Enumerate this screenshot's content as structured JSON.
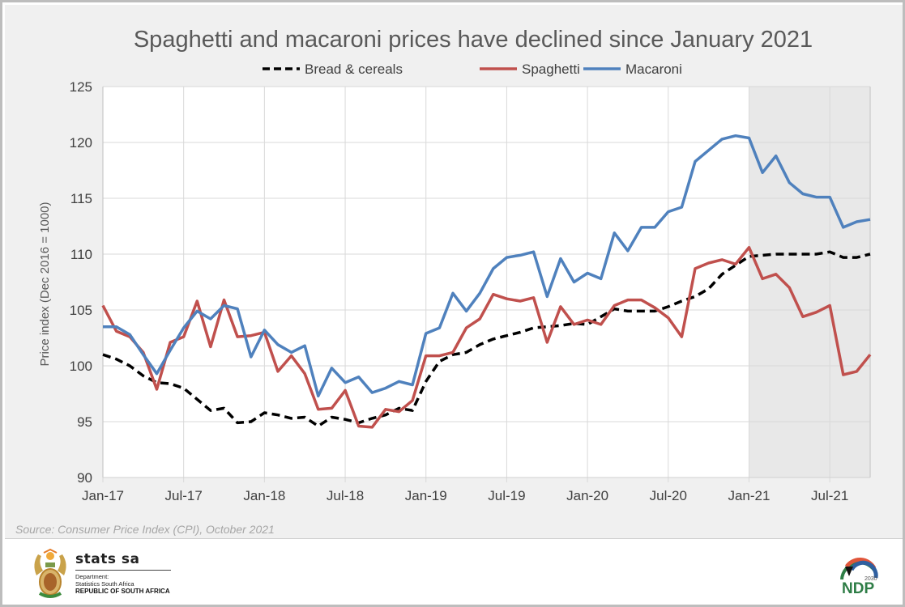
{
  "chart_data": {
    "type": "line",
    "title": "Spaghetti and macaroni prices have declined since January 2021",
    "xlabel": "",
    "ylabel": "Price index (Dec 2016 = 1000)",
    "ylim": [
      90,
      125
    ],
    "yticks": [
      "90",
      "95",
      "100",
      "105",
      "110",
      "115",
      "120",
      "125"
    ],
    "ytick_values": [
      90,
      95,
      100,
      105,
      110,
      115,
      120,
      125
    ],
    "xtick_labels": [
      "Jan-17",
      "Jul-17",
      "Jan-18",
      "Jul-18",
      "Jan-19",
      "Jul-19",
      "Jan-20",
      "Jul-20",
      "Jan-21",
      "Jul-21"
    ],
    "xtick_month_index": [
      0,
      6,
      12,
      18,
      24,
      30,
      36,
      42,
      48,
      54
    ],
    "x_start": "Jan-17",
    "x_end": "Oct-21",
    "n_points": 58,
    "grid": true,
    "legend_position": "top-center",
    "shaded_region": {
      "from_month_index": 48,
      "to_month_index": 57,
      "color": "#e8e8e8"
    },
    "series": [
      {
        "name": "Bread & cereals",
        "color": "#000000",
        "style": "dashed",
        "values": [
          101.0,
          100.6,
          100.0,
          99.1,
          98.5,
          98.4,
          98.0,
          97.0,
          96.0,
          96.2,
          94.9,
          95.0,
          95.8,
          95.6,
          95.3,
          95.4,
          94.6,
          95.4,
          95.2,
          94.9,
          95.3,
          95.6,
          96.2,
          96.0,
          98.6,
          100.4,
          101.0,
          101.2,
          101.9,
          102.4,
          102.7,
          103.0,
          103.4,
          103.5,
          103.6,
          103.8,
          103.7,
          104.4,
          105.1,
          104.9,
          104.9,
          104.9,
          105.3,
          105.8,
          106.2,
          106.9,
          108.2,
          109.0,
          109.8,
          109.9,
          110.0,
          110.0,
          110.0,
          110.0,
          110.2,
          109.7,
          109.7,
          110.0
        ]
      },
      {
        "name": "Spaghetti",
        "color": "#c0504d",
        "style": "solid",
        "values": [
          105.4,
          103.1,
          102.6,
          101.2,
          97.9,
          102.1,
          102.6,
          105.8,
          101.7,
          105.9,
          102.6,
          102.7,
          103.0,
          99.5,
          100.9,
          99.3,
          96.1,
          96.2,
          97.8,
          94.6,
          94.5,
          96.1,
          95.9,
          96.9,
          100.9,
          100.9,
          101.2,
          103.4,
          104.2,
          106.4,
          106.0,
          105.8,
          106.1,
          102.1,
          105.3,
          103.7,
          104.1,
          103.7,
          105.4,
          105.9,
          105.9,
          105.2,
          104.3,
          102.6,
          108.7,
          109.2,
          109.5,
          109.1,
          110.6,
          107.8,
          108.2,
          107.0,
          104.4,
          104.8,
          105.4,
          99.2,
          99.5,
          101.0
        ]
      },
      {
        "name": "Macaroni",
        "color": "#4f81bd",
        "style": "solid",
        "values": [
          103.5,
          103.5,
          102.8,
          101.0,
          99.3,
          101.4,
          103.4,
          104.9,
          104.2,
          105.4,
          105.1,
          100.8,
          103.2,
          101.9,
          101.2,
          101.8,
          97.3,
          99.8,
          98.5,
          99.0,
          97.6,
          98.0,
          98.6,
          98.3,
          102.9,
          103.4,
          106.5,
          104.9,
          106.5,
          108.7,
          109.7,
          109.9,
          110.2,
          106.2,
          109.6,
          107.5,
          108.3,
          107.8,
          111.9,
          110.3,
          112.4,
          112.4,
          113.8,
          114.2,
          118.3,
          119.3,
          120.3,
          120.6,
          120.4,
          117.3,
          118.8,
          116.4,
          115.4,
          115.1,
          115.1,
          112.4,
          112.9,
          113.1
        ]
      }
    ]
  },
  "source": "Source: Consumer Price Index (CPI), October 2021",
  "footer": {
    "org_name": "stats sa",
    "dept_line1": "Department:",
    "dept_line2": "Statistics South Africa",
    "country": "REPUBLIC OF SOUTH AFRICA",
    "ndp_logo_text": "NDP",
    "ndp_logo_year": "2030"
  }
}
